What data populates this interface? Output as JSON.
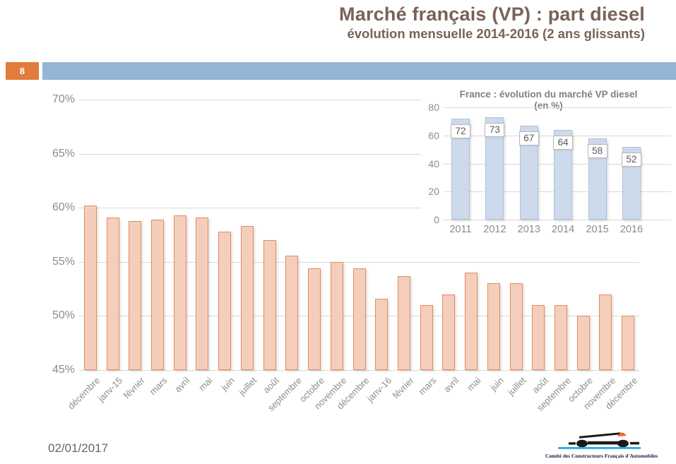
{
  "slide": {
    "page_number": "8",
    "title": "Marché français (VP) : part diesel",
    "subtitle": "évolution mensuelle 2014-2016 (2 ans glissants)",
    "date": "02/01/2017",
    "footer_logo_text": "Comité des Constructeurs Français d'Automobiles"
  },
  "colors": {
    "title_text": "#7a6157",
    "date_text": "#6f6360",
    "accent_orange": "#e07c3c",
    "header_bar_blue": "#94b5d3",
    "main_bar_fill": "#f5cebb",
    "main_bar_border": "#dd8e61",
    "inset_bar_fill": "#ccdaeb",
    "inset_bar_border": "#b0c2d8",
    "gridline": "#d9d9d9",
    "axis_text": "#8c8c8c",
    "inset_title_text": "#7f7f7f",
    "value_box_border": "#b7b7b7",
    "value_box_text": "#595959",
    "logo_black": "#1a1a1a",
    "logo_cyan": "#29abe2",
    "logo_orange": "#f26522",
    "logo_text_color": "#1c1c3c"
  },
  "chart_data": [
    {
      "type": "bar",
      "title": "",
      "categories": [
        "décembre",
        "janv-15",
        "février",
        "mars",
        "avril",
        "mai",
        "juin",
        "juillet",
        "août",
        "septembre",
        "octobre",
        "novembre",
        "décembre",
        "janv-16",
        "février",
        "mars",
        "avril",
        "mai",
        "juin",
        "juillet",
        "août",
        "septembre",
        "octobre",
        "novembre",
        "décembre"
      ],
      "values": [
        60.2,
        59.1,
        58.8,
        58.9,
        59.3,
        59.1,
        57.8,
        58.3,
        57.0,
        55.6,
        54.4,
        55.0,
        54.4,
        51.6,
        53.7,
        51.0,
        52.0,
        54.0,
        53.0,
        53.0,
        51.0,
        51.0,
        50.0,
        52.0,
        50.0
      ],
      "xlabel": "",
      "ylabel": "",
      "ylim": [
        45,
        70
      ],
      "yticks": [
        70,
        65,
        60,
        55,
        50,
        45
      ],
      "ytick_suffix": "%",
      "grid": true,
      "legend": "none"
    },
    {
      "type": "bar",
      "title": "France : évolution du marché VP diesel (en %)",
      "categories": [
        "2011",
        "2012",
        "2013",
        "2014",
        "2015",
        "2016"
      ],
      "values": [
        72,
        73,
        67,
        64,
        58,
        52
      ],
      "data_labels": [
        72,
        73,
        67,
        64,
        58,
        52
      ],
      "xlabel": "",
      "ylabel": "",
      "ylim": [
        0,
        80
      ],
      "yticks": [
        80,
        60,
        40,
        20,
        0
      ],
      "grid": true,
      "legend": "none"
    }
  ]
}
